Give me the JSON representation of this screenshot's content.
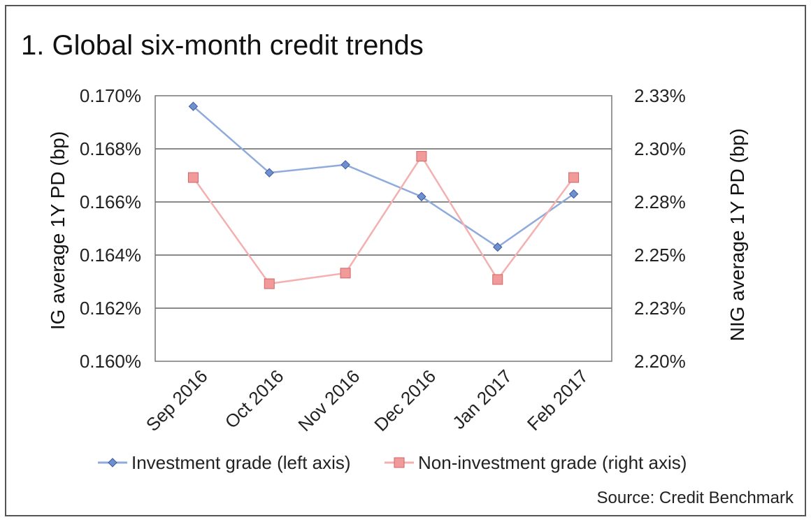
{
  "chart_data": {
    "type": "line",
    "title": "1. Global six-month credit trends",
    "categories": [
      "Sep 2016",
      "Oct 2016",
      "Nov 2016",
      "Dec 2016",
      "Jan 2017",
      "Feb 2017"
    ],
    "series": [
      {
        "name": "Investment grade (left axis)",
        "axis": "left",
        "color": "#8faadc",
        "marker_color": "#6f8fd0",
        "marker": "diamond",
        "values": [
          0.1696,
          0.1671,
          0.1674,
          0.1662,
          0.1643,
          0.1663
        ]
      },
      {
        "name": "Non-investment grade (right axis)",
        "axis": "right",
        "color": "#f4b0b0",
        "marker_color": "#f29a9a",
        "marker": "square",
        "values": [
          2.2865,
          2.2365,
          2.2415,
          2.2965,
          2.2385,
          2.2865
        ]
      }
    ],
    "y_left": {
      "label": "IG average 1Y PD (bp)",
      "ylim": [
        0.16,
        0.17
      ],
      "ticks": [
        0.16,
        0.162,
        0.164,
        0.166,
        0.168,
        0.17
      ],
      "tick_labels": [
        "0.160%",
        "0.162%",
        "0.164%",
        "0.166%",
        "0.168%",
        "0.170%"
      ]
    },
    "y_right": {
      "label": "NIG average 1Y PD (bp)",
      "ylim": [
        2.2,
        2.325
      ],
      "tick_labels": [
        "2.20%",
        "2.23%",
        "2.25%",
        "2.28%",
        "2.30%",
        "2.33%"
      ]
    },
    "grid": true,
    "legend": "bottom",
    "source": "Source: Credit Benchmark"
  }
}
